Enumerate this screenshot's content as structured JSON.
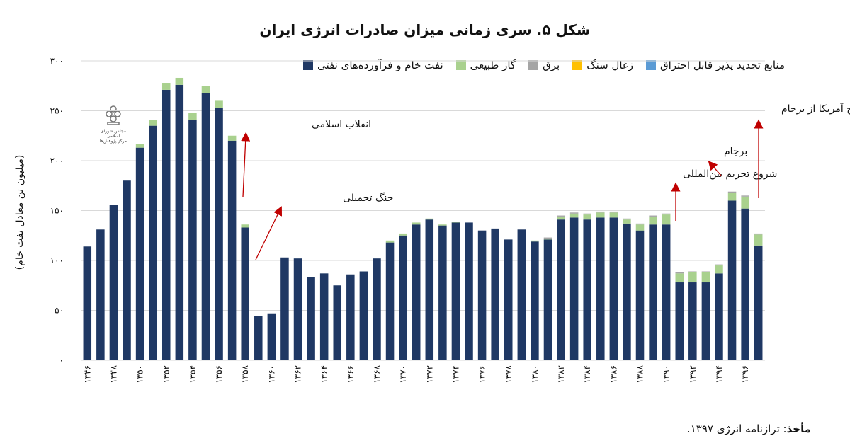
{
  "chart_data": {
    "type": "bar",
    "stacked": true,
    "title": "شکل ۵. سری زمانی میزان صادرات انرژی ایران",
    "ylabel": "(میلیون تن معادل نفت خام)",
    "xlabel": "",
    "ylim": [
      0,
      300
    ],
    "yticks": [
      0,
      50,
      100,
      150,
      200,
      250,
      300
    ],
    "ytick_labels": [
      "۰",
      "۵۰",
      "۱۰۰",
      "۱۵۰",
      "۲۰۰",
      "۲۵۰",
      "۳۰۰"
    ],
    "categories": [
      "1346",
      "1347",
      "1348",
      "1349",
      "1350",
      "1351",
      "1352",
      "1353",
      "1354",
      "1355",
      "1356",
      "1357",
      "1358",
      "1359",
      "1360",
      "1361",
      "1362",
      "1363",
      "1364",
      "1365",
      "1366",
      "1367",
      "1368",
      "1369",
      "1370",
      "1371",
      "1372",
      "1373",
      "1374",
      "1375",
      "1376",
      "1377",
      "1378",
      "1379",
      "1380",
      "1381",
      "1382",
      "1383",
      "1384",
      "1385",
      "1386",
      "1387",
      "1388",
      "1389",
      "1390",
      "1391",
      "1392",
      "1393",
      "1394",
      "1395",
      "1396",
      "1397"
    ],
    "xtick_labels": [
      "۱۳۴۶",
      "۱۳۴۸",
      "۱۳۵۰",
      "۱۳۵۲",
      "۱۳۵۴",
      "۱۳۵۶",
      "۱۳۵۸",
      "۱۳۶۰",
      "۱۳۶۲",
      "۱۳۶۴",
      "۱۳۶۶",
      "۱۳۶۸",
      "۱۳۷۰",
      "۱۳۷۲",
      "۱۳۷۴",
      "۱۳۷۶",
      "۱۳۷۸",
      "۱۳۸۰",
      "۱۳۸۲",
      "۱۳۸۴",
      "۱۳۸۶",
      "۱۳۸۸",
      "۱۳۹۰",
      "۱۳۹۲",
      "۱۳۹۴",
      "۱۳۹۶"
    ],
    "series": [
      {
        "name": "نفت خام و فرآورده‌های نفتی",
        "color": "#1f3864",
        "values": [
          114,
          131,
          156,
          180,
          213,
          235,
          271,
          276,
          241,
          268,
          253,
          220,
          133,
          44,
          47,
          103,
          102,
          83,
          87,
          75,
          86,
          89,
          102,
          118,
          125,
          136,
          141,
          135,
          138,
          138,
          130,
          132,
          121,
          131,
          119,
          121,
          141,
          143,
          141,
          143,
          143,
          137,
          130,
          136,
          136,
          78,
          78,
          78,
          87,
          160,
          152,
          115
        ]
      },
      {
        "name": "گاز طبیعی",
        "color": "#a9d18e",
        "values": [
          0,
          0,
          0,
          0,
          4,
          6,
          7,
          7,
          7,
          7,
          7,
          5,
          3,
          0,
          0,
          0,
          0,
          0,
          0,
          0,
          0,
          0,
          0,
          2,
          2,
          2,
          1,
          1,
          1,
          0,
          0,
          0,
          0,
          0,
          1,
          1,
          3,
          4,
          5,
          5,
          5,
          4,
          6,
          8,
          10,
          9,
          10,
          10,
          8,
          8,
          12,
          11
        ]
      },
      {
        "name": "برق",
        "color": "#a5a5a5",
        "values": [
          0,
          0,
          0,
          0,
          0,
          0,
          0,
          0,
          0,
          0,
          0,
          0,
          0,
          0,
          0,
          0,
          0,
          0,
          0,
          0,
          0,
          0,
          0,
          0,
          0,
          0,
          0,
          0,
          0,
          0,
          0,
          0,
          0,
          0,
          0,
          1,
          1,
          1,
          1,
          1,
          1,
          1,
          1,
          1,
          1,
          1,
          1,
          1,
          1,
          1,
          1,
          1
        ]
      },
      {
        "name": "زغال سنگ",
        "color": "#ffc000",
        "values": [
          0,
          0,
          0,
          0,
          0,
          0,
          0,
          0,
          0,
          0,
          0,
          0,
          0,
          0,
          0,
          0,
          0,
          0,
          0,
          0,
          0,
          0,
          0,
          0,
          0,
          0,
          0,
          0,
          0,
          0,
          0,
          0,
          0,
          0,
          0,
          0,
          0,
          0,
          0,
          0,
          0,
          0,
          0,
          0,
          0,
          0,
          0,
          0,
          0,
          0,
          0,
          0
        ]
      },
      {
        "name": "منابع تجدید پذیر قابل احتراق",
        "color": "#5b9bd5",
        "values": [
          0,
          0,
          0,
          0,
          0,
          0,
          0,
          0,
          0,
          0,
          0,
          0,
          0,
          0,
          0,
          0,
          0,
          0,
          0,
          0,
          0,
          0,
          0,
          0,
          0,
          0,
          0,
          0,
          0,
          0,
          0,
          0,
          0,
          0,
          0,
          0,
          0,
          0,
          0,
          0,
          0,
          0,
          0,
          0,
          0,
          0,
          0,
          0,
          0,
          0,
          0,
          0
        ]
      }
    ],
    "annotations": [
      {
        "text": "انقلاب اسلامی",
        "year": "1358"
      },
      {
        "text": "جنگ تحمیلی",
        "year": "1359"
      },
      {
        "text": "شروع تحریم بین‌المللی",
        "year": "1390"
      },
      {
        "text": "برجام",
        "year": "1394"
      },
      {
        "text": "خروج آمریکا از برجام",
        "year": "1397"
      }
    ]
  },
  "logo": {
    "text_line1": "مجلس شورای اسلامی",
    "text_line2": "مرکز پژوهش‌ها"
  },
  "source": {
    "label": "مأخذ",
    "text": ": ترازنامه انرژی ۱۳۹۷."
  }
}
